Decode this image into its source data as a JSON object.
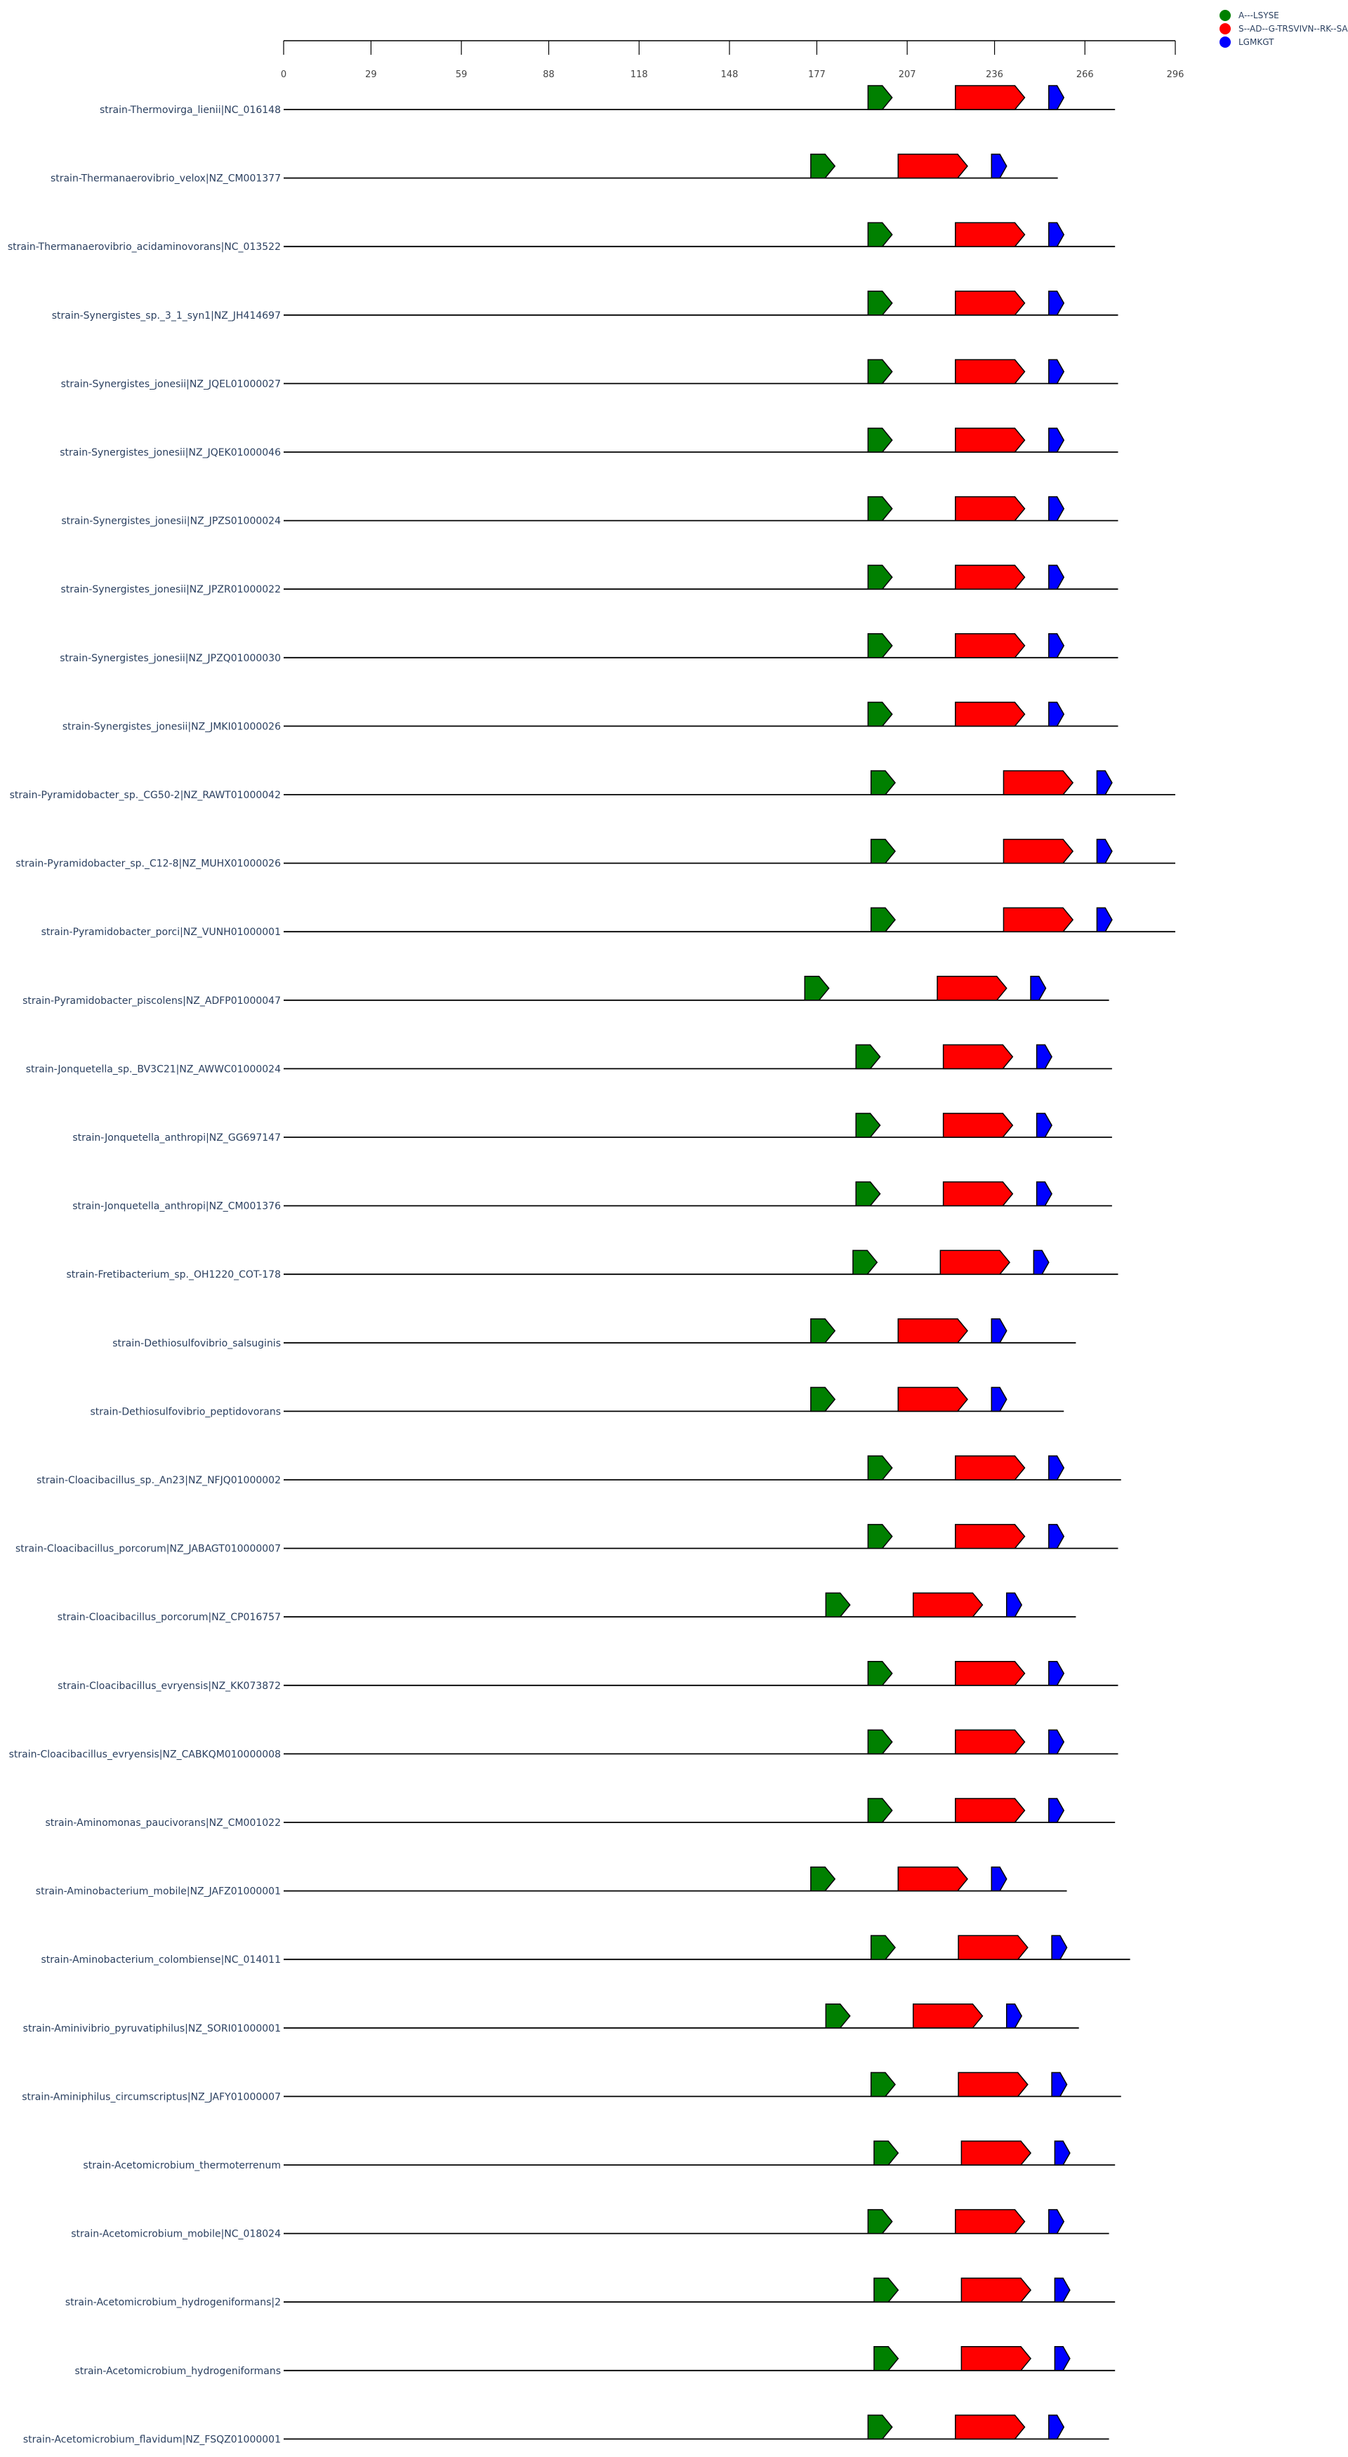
{
  "colors": {
    "A-LSYSE": "#008000",
    "S-AD-G-TRSVIVN-RK-SA": "#ff0000",
    "LGMKGT": "#0000ff",
    "text": "#2a3f5f",
    "line": "#000000"
  },
  "legend": [
    {
      "label": "A---LSYSE",
      "color_key": "A-LSYSE"
    },
    {
      "label": "S--AD--G-TRSVIVN--RK--SA",
      "color_key": "S-AD-G-TRSVIVN-RK-SA"
    },
    {
      "label": "LGMKGT",
      "color_key": "LGMKGT"
    }
  ],
  "axis": {
    "range": [
      0,
      296
    ],
    "ticks": [
      0,
      29,
      59,
      88,
      118,
      148,
      177,
      207,
      236,
      266,
      296
    ]
  },
  "tracks": [
    {
      "name": "strain-Thermovirga_lienii|NC_016148",
      "length": 276,
      "genes": [
        {
          "key": "A-LSYSE",
          "start": 194,
          "end": 202
        },
        {
          "key": "S-AD-G-TRSVIVN-RK-SA",
          "start": 223,
          "end": 246
        },
        {
          "key": "LGMKGT",
          "start": 254,
          "end": 259
        }
      ]
    },
    {
      "name": "strain-Thermanaerovibrio_velox|NZ_CM001377",
      "length": 257,
      "genes": [
        {
          "key": "A-LSYSE",
          "start": 175,
          "end": 183
        },
        {
          "key": "S-AD-G-TRSVIVN-RK-SA",
          "start": 204,
          "end": 227
        },
        {
          "key": "LGMKGT",
          "start": 235,
          "end": 240
        }
      ]
    },
    {
      "name": "strain-Thermanaerovibrio_acidaminovorans|NC_013522",
      "length": 276,
      "genes": [
        {
          "key": "A-LSYSE",
          "start": 194,
          "end": 202
        },
        {
          "key": "S-AD-G-TRSVIVN-RK-SA",
          "start": 223,
          "end": 246
        },
        {
          "key": "LGMKGT",
          "start": 254,
          "end": 259
        }
      ]
    },
    {
      "name": "strain-Synergistes_sp._3_1_syn1|NZ_JH414697",
      "length": 277,
      "genes": [
        {
          "key": "A-LSYSE",
          "start": 194,
          "end": 202
        },
        {
          "key": "S-AD-G-TRSVIVN-RK-SA",
          "start": 223,
          "end": 246
        },
        {
          "key": "LGMKGT",
          "start": 254,
          "end": 259
        }
      ]
    },
    {
      "name": "strain-Synergistes_jonesii|NZ_JQEL01000027",
      "length": 277,
      "genes": [
        {
          "key": "A-LSYSE",
          "start": 194,
          "end": 202
        },
        {
          "key": "S-AD-G-TRSVIVN-RK-SA",
          "start": 223,
          "end": 246
        },
        {
          "key": "LGMKGT",
          "start": 254,
          "end": 259
        }
      ]
    },
    {
      "name": "strain-Synergistes_jonesii|NZ_JQEK01000046",
      "length": 277,
      "genes": [
        {
          "key": "A-LSYSE",
          "start": 194,
          "end": 202
        },
        {
          "key": "S-AD-G-TRSVIVN-RK-SA",
          "start": 223,
          "end": 246
        },
        {
          "key": "LGMKGT",
          "start": 254,
          "end": 259
        }
      ]
    },
    {
      "name": "strain-Synergistes_jonesii|NZ_JPZS01000024",
      "length": 277,
      "genes": [
        {
          "key": "A-LSYSE",
          "start": 194,
          "end": 202
        },
        {
          "key": "S-AD-G-TRSVIVN-RK-SA",
          "start": 223,
          "end": 246
        },
        {
          "key": "LGMKGT",
          "start": 254,
          "end": 259
        }
      ]
    },
    {
      "name": "strain-Synergistes_jonesii|NZ_JPZR01000022",
      "length": 277,
      "genes": [
        {
          "key": "A-LSYSE",
          "start": 194,
          "end": 202
        },
        {
          "key": "S-AD-G-TRSVIVN-RK-SA",
          "start": 223,
          "end": 246
        },
        {
          "key": "LGMKGT",
          "start": 254,
          "end": 259
        }
      ]
    },
    {
      "name": "strain-Synergistes_jonesii|NZ_JPZQ01000030",
      "length": 277,
      "genes": [
        {
          "key": "A-LSYSE",
          "start": 194,
          "end": 202
        },
        {
          "key": "S-AD-G-TRSVIVN-RK-SA",
          "start": 223,
          "end": 246
        },
        {
          "key": "LGMKGT",
          "start": 254,
          "end": 259
        }
      ]
    },
    {
      "name": "strain-Synergistes_jonesii|NZ_JMKI01000026",
      "length": 277,
      "genes": [
        {
          "key": "A-LSYSE",
          "start": 194,
          "end": 202
        },
        {
          "key": "S-AD-G-TRSVIVN-RK-SA",
          "start": 223,
          "end": 246
        },
        {
          "key": "LGMKGT",
          "start": 254,
          "end": 259
        }
      ]
    },
    {
      "name": "strain-Pyramidobacter_sp._CG50-2|NZ_RAWT01000042",
      "length": 296,
      "genes": [
        {
          "key": "A-LSYSE",
          "start": 195,
          "end": 203
        },
        {
          "key": "S-AD-G-TRSVIVN-RK-SA",
          "start": 239,
          "end": 262
        },
        {
          "key": "LGMKGT",
          "start": 270,
          "end": 275
        }
      ]
    },
    {
      "name": "strain-Pyramidobacter_sp._C12-8|NZ_MUHX01000026",
      "length": 296,
      "genes": [
        {
          "key": "A-LSYSE",
          "start": 195,
          "end": 203
        },
        {
          "key": "S-AD-G-TRSVIVN-RK-SA",
          "start": 239,
          "end": 262
        },
        {
          "key": "LGMKGT",
          "start": 270,
          "end": 275
        }
      ]
    },
    {
      "name": "strain-Pyramidobacter_porci|NZ_VUNH01000001",
      "length": 296,
      "genes": [
        {
          "key": "A-LSYSE",
          "start": 195,
          "end": 203
        },
        {
          "key": "S-AD-G-TRSVIVN-RK-SA",
          "start": 239,
          "end": 262
        },
        {
          "key": "LGMKGT",
          "start": 270,
          "end": 275
        }
      ]
    },
    {
      "name": "strain-Pyramidobacter_piscolens|NZ_ADFP01000047",
      "length": 274,
      "genes": [
        {
          "key": "A-LSYSE",
          "start": 173,
          "end": 181
        },
        {
          "key": "S-AD-G-TRSVIVN-RK-SA",
          "start": 217,
          "end": 240
        },
        {
          "key": "LGMKGT",
          "start": 248,
          "end": 253
        }
      ]
    },
    {
      "name": "strain-Jonquetella_sp._BV3C21|NZ_AWWC01000024",
      "length": 275,
      "genes": [
        {
          "key": "A-LSYSE",
          "start": 190,
          "end": 198
        },
        {
          "key": "S-AD-G-TRSVIVN-RK-SA",
          "start": 219,
          "end": 242
        },
        {
          "key": "LGMKGT",
          "start": 250,
          "end": 255
        }
      ]
    },
    {
      "name": "strain-Jonquetella_anthropi|NZ_GG697147",
      "length": 275,
      "genes": [
        {
          "key": "A-LSYSE",
          "start": 190,
          "end": 198
        },
        {
          "key": "S-AD-G-TRSVIVN-RK-SA",
          "start": 219,
          "end": 242
        },
        {
          "key": "LGMKGT",
          "start": 250,
          "end": 255
        }
      ]
    },
    {
      "name": "strain-Jonquetella_anthropi|NZ_CM001376",
      "length": 275,
      "genes": [
        {
          "key": "A-LSYSE",
          "start": 190,
          "end": 198
        },
        {
          "key": "S-AD-G-TRSVIVN-RK-SA",
          "start": 219,
          "end": 242
        },
        {
          "key": "LGMKGT",
          "start": 250,
          "end": 255
        }
      ]
    },
    {
      "name": "strain-Fretibacterium_sp._OH1220_COT-178",
      "length": 277,
      "genes": [
        {
          "key": "A-LSYSE",
          "start": 189,
          "end": 197
        },
        {
          "key": "S-AD-G-TRSVIVN-RK-SA",
          "start": 218,
          "end": 241
        },
        {
          "key": "LGMKGT",
          "start": 249,
          "end": 254
        }
      ]
    },
    {
      "name": "strain-Dethiosulfovibrio_salsuginis",
      "length": 263,
      "genes": [
        {
          "key": "A-LSYSE",
          "start": 175,
          "end": 183
        },
        {
          "key": "S-AD-G-TRSVIVN-RK-SA",
          "start": 204,
          "end": 227
        },
        {
          "key": "LGMKGT",
          "start": 235,
          "end": 240
        }
      ]
    },
    {
      "name": "strain-Dethiosulfovibrio_peptidovorans",
      "length": 259,
      "genes": [
        {
          "key": "A-LSYSE",
          "start": 175,
          "end": 183
        },
        {
          "key": "S-AD-G-TRSVIVN-RK-SA",
          "start": 204,
          "end": 227
        },
        {
          "key": "LGMKGT",
          "start": 235,
          "end": 240
        }
      ]
    },
    {
      "name": "strain-Cloacibacillus_sp._An23|NZ_NFJQ01000002",
      "length": 278,
      "genes": [
        {
          "key": "A-LSYSE",
          "start": 194,
          "end": 202
        },
        {
          "key": "S-AD-G-TRSVIVN-RK-SA",
          "start": 223,
          "end": 246
        },
        {
          "key": "LGMKGT",
          "start": 254,
          "end": 259
        }
      ]
    },
    {
      "name": "strain-Cloacibacillus_porcorum|NZ_JABAGT010000007",
      "length": 277,
      "genes": [
        {
          "key": "A-LSYSE",
          "start": 194,
          "end": 202
        },
        {
          "key": "S-AD-G-TRSVIVN-RK-SA",
          "start": 223,
          "end": 246
        },
        {
          "key": "LGMKGT",
          "start": 254,
          "end": 259
        }
      ]
    },
    {
      "name": "strain-Cloacibacillus_porcorum|NZ_CP016757",
      "length": 263,
      "genes": [
        {
          "key": "A-LSYSE",
          "start": 180,
          "end": 188
        },
        {
          "key": "S-AD-G-TRSVIVN-RK-SA",
          "start": 209,
          "end": 232
        },
        {
          "key": "LGMKGT",
          "start": 240,
          "end": 245
        }
      ]
    },
    {
      "name": "strain-Cloacibacillus_evryensis|NZ_KK073872",
      "length": 277,
      "genes": [
        {
          "key": "A-LSYSE",
          "start": 194,
          "end": 202
        },
        {
          "key": "S-AD-G-TRSVIVN-RK-SA",
          "start": 223,
          "end": 246
        },
        {
          "key": "LGMKGT",
          "start": 254,
          "end": 259
        }
      ]
    },
    {
      "name": "strain-Cloacibacillus_evryensis|NZ_CABKQM010000008",
      "length": 277,
      "genes": [
        {
          "key": "A-LSYSE",
          "start": 194,
          "end": 202
        },
        {
          "key": "S-AD-G-TRSVIVN-RK-SA",
          "start": 223,
          "end": 246
        },
        {
          "key": "LGMKGT",
          "start": 254,
          "end": 259
        }
      ]
    },
    {
      "name": "strain-Aminomonas_paucivorans|NZ_CM001022",
      "length": 276,
      "genes": [
        {
          "key": "A-LSYSE",
          "start": 194,
          "end": 202
        },
        {
          "key": "S-AD-G-TRSVIVN-RK-SA",
          "start": 223,
          "end": 246
        },
        {
          "key": "LGMKGT",
          "start": 254,
          "end": 259
        }
      ]
    },
    {
      "name": "strain-Aminobacterium_mobile|NZ_JAFZ01000001",
      "length": 260,
      "genes": [
        {
          "key": "A-LSYSE",
          "start": 175,
          "end": 183
        },
        {
          "key": "S-AD-G-TRSVIVN-RK-SA",
          "start": 204,
          "end": 227
        },
        {
          "key": "LGMKGT",
          "start": 235,
          "end": 240
        }
      ]
    },
    {
      "name": "strain-Aminobacterium_colombiense|NC_014011",
      "length": 281,
      "genes": [
        {
          "key": "A-LSYSE",
          "start": 195,
          "end": 203
        },
        {
          "key": "S-AD-G-TRSVIVN-RK-SA",
          "start": 224,
          "end": 247
        },
        {
          "key": "LGMKGT",
          "start": 255,
          "end": 260
        }
      ]
    },
    {
      "name": "strain-Aminivibrio_pyruvatiphilus|NZ_SORI01000001",
      "length": 264,
      "genes": [
        {
          "key": "A-LSYSE",
          "start": 180,
          "end": 188
        },
        {
          "key": "S-AD-G-TRSVIVN-RK-SA",
          "start": 209,
          "end": 232
        },
        {
          "key": "LGMKGT",
          "start": 240,
          "end": 245
        }
      ]
    },
    {
      "name": "strain-Aminiphilus_circumscriptus|NZ_JAFY01000007",
      "length": 278,
      "genes": [
        {
          "key": "A-LSYSE",
          "start": 195,
          "end": 203
        },
        {
          "key": "S-AD-G-TRSVIVN-RK-SA",
          "start": 224,
          "end": 247
        },
        {
          "key": "LGMKGT",
          "start": 255,
          "end": 260
        }
      ]
    },
    {
      "name": "strain-Acetomicrobium_thermoterrenum",
      "length": 276,
      "genes": [
        {
          "key": "A-LSYSE",
          "start": 196,
          "end": 204
        },
        {
          "key": "S-AD-G-TRSVIVN-RK-SA",
          "start": 225,
          "end": 248
        },
        {
          "key": "LGMKGT",
          "start": 256,
          "end": 261
        }
      ]
    },
    {
      "name": "strain-Acetomicrobium_mobile|NC_018024",
      "length": 274,
      "genes": [
        {
          "key": "A-LSYSE",
          "start": 194,
          "end": 202
        },
        {
          "key": "S-AD-G-TRSVIVN-RK-SA",
          "start": 223,
          "end": 246
        },
        {
          "key": "LGMKGT",
          "start": 254,
          "end": 259
        }
      ]
    },
    {
      "name": "strain-Acetomicrobium_hydrogeniformans|2",
      "length": 276,
      "genes": [
        {
          "key": "A-LSYSE",
          "start": 196,
          "end": 204
        },
        {
          "key": "S-AD-G-TRSVIVN-RK-SA",
          "start": 225,
          "end": 248
        },
        {
          "key": "LGMKGT",
          "start": 256,
          "end": 261
        }
      ]
    },
    {
      "name": "strain-Acetomicrobium_hydrogeniformans",
      "length": 276,
      "genes": [
        {
          "key": "A-LSYSE",
          "start": 196,
          "end": 204
        },
        {
          "key": "S-AD-G-TRSVIVN-RK-SA",
          "start": 225,
          "end": 248
        },
        {
          "key": "LGMKGT",
          "start": 256,
          "end": 261
        }
      ]
    },
    {
      "name": "strain-Acetomicrobium_flavidum|NZ_FSQZ01000001",
      "length": 274,
      "genes": [
        {
          "key": "A-LSYSE",
          "start": 194,
          "end": 202
        },
        {
          "key": "S-AD-G-TRSVIVN-RK-SA",
          "start": 223,
          "end": 246
        },
        {
          "key": "LGMKGT",
          "start": 254,
          "end": 259
        }
      ]
    }
  ]
}
